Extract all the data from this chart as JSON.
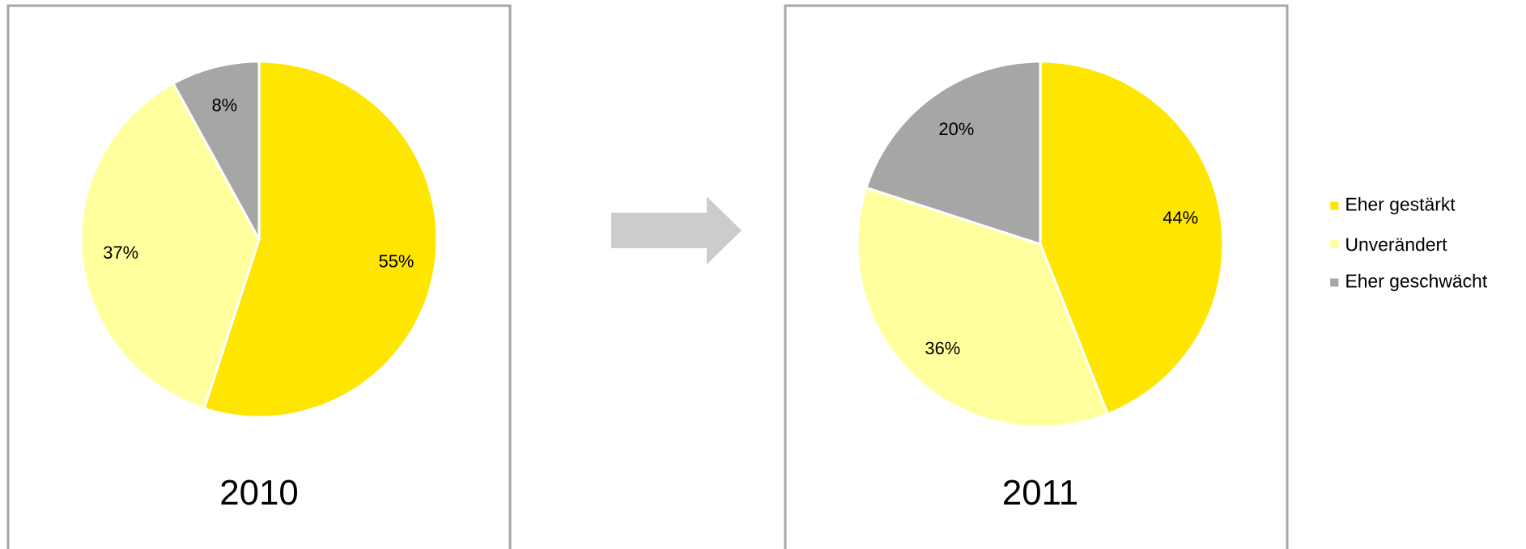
{
  "chart_data": [
    {
      "type": "pie",
      "title": "2010",
      "categories": [
        null,
        null,
        null
      ],
      "values": [
        55,
        37,
        8
      ],
      "value_labels": [
        "55%",
        "37%",
        "8%"
      ],
      "colors": [
        "#ffe600",
        "#ffff9e",
        "#a6a6a6"
      ]
    },
    {
      "type": "pie",
      "title": "2011",
      "categories": [
        "Eher gestärkt",
        "Unverändert",
        "Eher geschwächt"
      ],
      "values": [
        44,
        36,
        20
      ],
      "value_labels": [
        "44%",
        "36%",
        "20%"
      ],
      "colors": [
        "#ffe600",
        "#ffff9e",
        "#a6a6a6"
      ],
      "legend": "right"
    }
  ]
}
